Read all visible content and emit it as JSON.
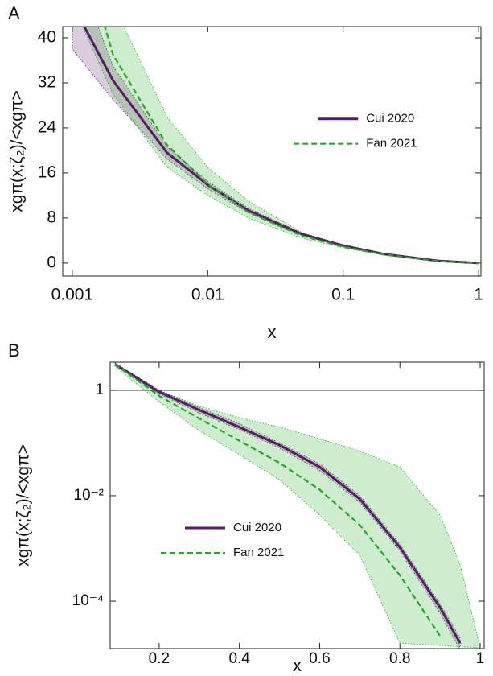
{
  "chart_data": [
    {
      "type": "line",
      "panel_label": "A",
      "x_label": "x",
      "y_label": "xgπ(x;ζ₂)/<xgπ>",
      "log_x": true,
      "log_y": false,
      "legend_loc": "center right",
      "x": [
        0.001,
        0.002,
        0.005,
        0.01,
        0.02,
        0.05,
        0.1,
        0.2,
        0.5,
        1
      ],
      "xlim": [
        0.00085,
        1.04
      ],
      "ylim": [
        -2.3,
        42
      ],
      "xticks": [
        0.001,
        0.01,
        0.1,
        1
      ],
      "yticks": [
        0,
        8,
        16,
        24,
        32,
        40
      ],
      "series": [
        {
          "name": "Cui 2020",
          "color": "#5b1a6b",
          "dash": false,
          "values": [
            46,
            32.4,
            19.6,
            13.9,
            9.3,
            5.1,
            3.1,
            1.6,
            0.4,
            0
          ],
          "band_lower": [
            38,
            29,
            18.5,
            13.2,
            8.9,
            4.9,
            3.0,
            1.55,
            0.38,
            0
          ],
          "band_upper": [
            54,
            35,
            20.7,
            14.5,
            9.7,
            5.3,
            3.2,
            1.7,
            0.42,
            0
          ]
        },
        {
          "name": "Fan 2021",
          "color": "#22aa22",
          "dash": true,
          "values": [
            62,
            37,
            21,
            14,
            9,
            4.8,
            2.9,
            1.5,
            0.35,
            0
          ],
          "band_lower": [
            46,
            30,
            17,
            12,
            8,
            4.4,
            2.7,
            1.4,
            0.3,
            0
          ],
          "band_upper": [
            80,
            46,
            26,
            17,
            11,
            5.4,
            3.2,
            1.7,
            0.4,
            0
          ]
        }
      ]
    },
    {
      "type": "line",
      "panel_label": "B",
      "x_label": "x",
      "y_label": "xgπ(x;ζ₂)/<xgπ>",
      "log_x": false,
      "log_y": true,
      "legend_loc": "lower left",
      "reference_line": 1,
      "x": [
        0.09,
        0.2,
        0.3,
        0.4,
        0.5,
        0.6,
        0.7,
        0.8,
        0.9,
        0.95,
        1.0
      ],
      "xlim": [
        0.078,
        1.01
      ],
      "ylim": [
        1.26e-05,
        3.4
      ],
      "xticks": [
        0.2,
        0.4,
        0.6,
        0.8,
        1
      ],
      "yticks": [
        1,
        {
          "value": 0.01,
          "label": "10⁻²"
        },
        {
          "value": 0.0001,
          "label": "10⁻⁴"
        }
      ],
      "series": [
        {
          "name": "Cui 2020",
          "color": "#5b1a6b",
          "dash": false,
          "values": [
            3.1,
            0.93,
            0.42,
            0.2,
            0.091,
            0.035,
            0.0087,
            0.00105,
            7.6e-05,
            1.6e-05,
            null
          ],
          "band_lower": [
            2.9,
            0.85,
            0.37,
            0.18,
            0.08,
            0.03,
            0.0075,
            0.0009,
            6e-05,
            1.2e-05,
            null
          ],
          "band_upper": [
            3.3,
            1.0,
            0.47,
            0.23,
            0.1,
            0.04,
            0.01,
            0.0012,
            9e-05,
            2e-05,
            null
          ]
        },
        {
          "name": "Fan 2021",
          "color": "#22aa22",
          "dash": true,
          "values": [
            3.1,
            0.78,
            0.29,
            0.11,
            0.042,
            0.013,
            0.0028,
            0.00031,
            2.2e-05,
            null,
            null
          ],
          "band_lower": [
            2.8,
            0.6,
            0.17,
            0.06,
            0.02,
            0.0043,
            0.00074,
            1.6e-05,
            null,
            null,
            null
          ],
          "band_upper": [
            3.2,
            1.0,
            0.5,
            0.3,
            0.2,
            0.12,
            0.07,
            0.035,
            0.0043,
            0.0005,
            1.3e-05
          ]
        }
      ]
    }
  ]
}
